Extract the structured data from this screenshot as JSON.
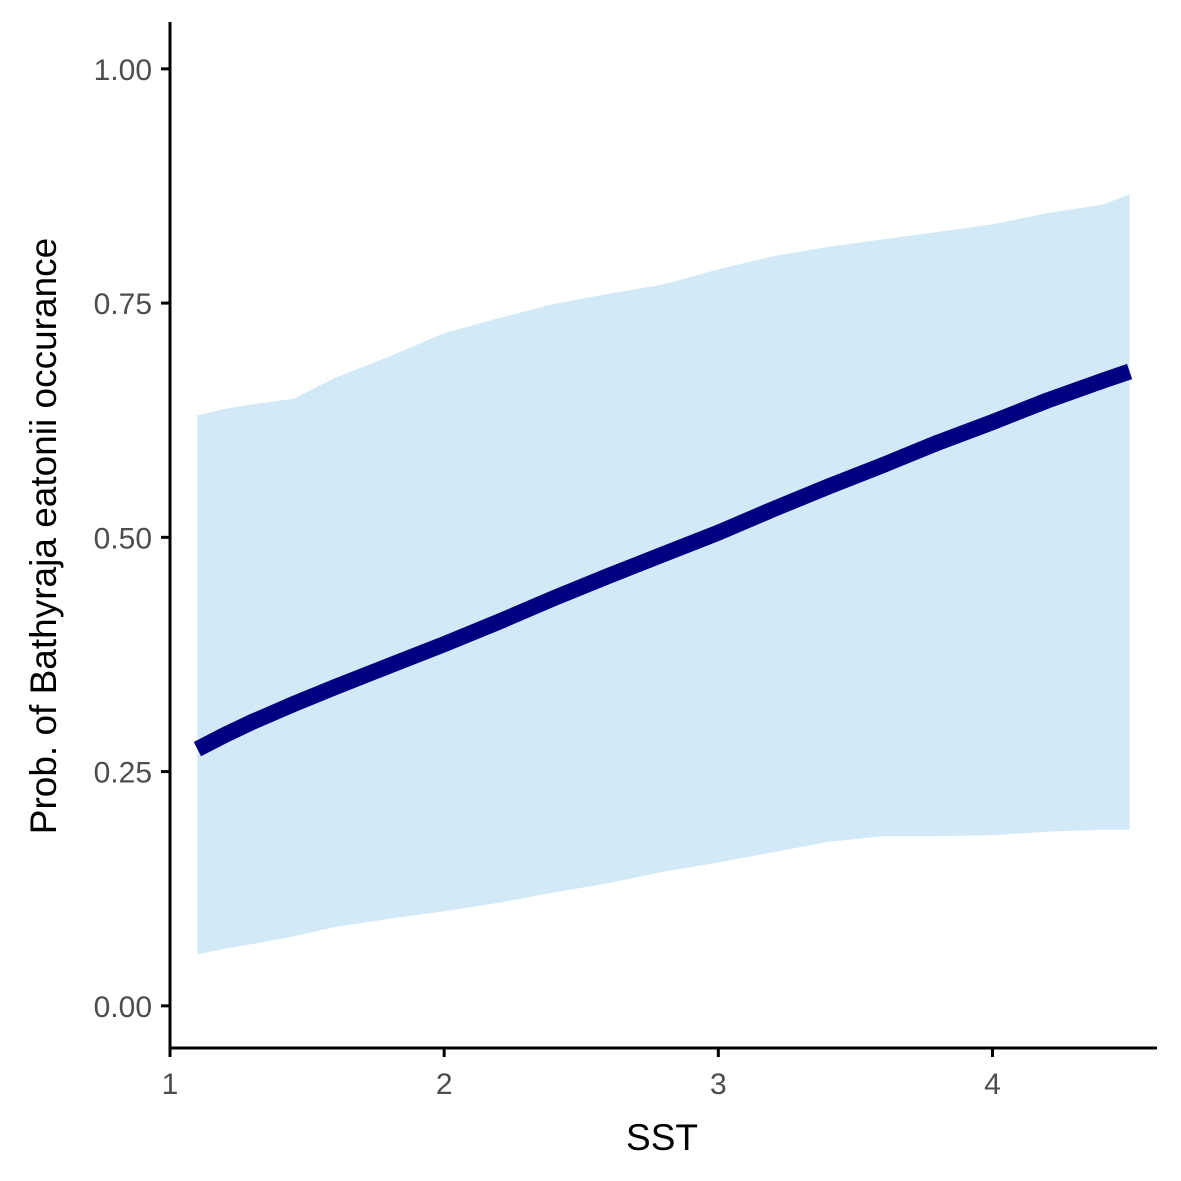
{
  "chart_data": {
    "type": "line",
    "xlabel": "SST",
    "ylabel": "Prob. of  Bathyraja eatonii  occurance",
    "xlim": [
      1.0,
      4.6
    ],
    "ylim": [
      -0.045,
      1.05
    ],
    "x_ticks": [
      "1",
      "2",
      "3",
      "4"
    ],
    "y_ticks": [
      "0.00",
      "0.25",
      "0.50",
      "0.75",
      "1.00"
    ],
    "grid": false,
    "legend": "none",
    "colors": {
      "line": "#000080",
      "ribbon": "#d2eaf7",
      "axis": "#000000",
      "tick_text": "#4d4d4d"
    },
    "series": [
      {
        "x": [
          1.1,
          1.2,
          1.3,
          1.45,
          1.6,
          1.8,
          2.0,
          2.2,
          2.4,
          2.6,
          2.8,
          3.0,
          3.2,
          3.4,
          3.6,
          3.8,
          4.0,
          4.2,
          4.4,
          4.5
        ],
        "y": [
          0.274,
          0.289,
          0.303,
          0.322,
          0.34,
          0.363,
          0.386,
          0.41,
          0.435,
          0.459,
          0.482,
          0.505,
          0.53,
          0.554,
          0.577,
          0.601,
          0.623,
          0.646,
          0.667,
          0.677
        ],
        "lower": [
          0.055,
          0.061,
          0.066,
          0.074,
          0.084,
          0.093,
          0.101,
          0.11,
          0.121,
          0.131,
          0.143,
          0.153,
          0.164,
          0.175,
          0.181,
          0.181,
          0.182,
          0.186,
          0.188,
          0.188
        ],
        "upper": [
          0.63,
          0.637,
          0.642,
          0.648,
          0.67,
          0.693,
          0.718,
          0.734,
          0.749,
          0.76,
          0.77,
          0.786,
          0.8,
          0.81,
          0.818,
          0.826,
          0.834,
          0.846,
          0.855,
          0.866
        ]
      }
    ]
  }
}
